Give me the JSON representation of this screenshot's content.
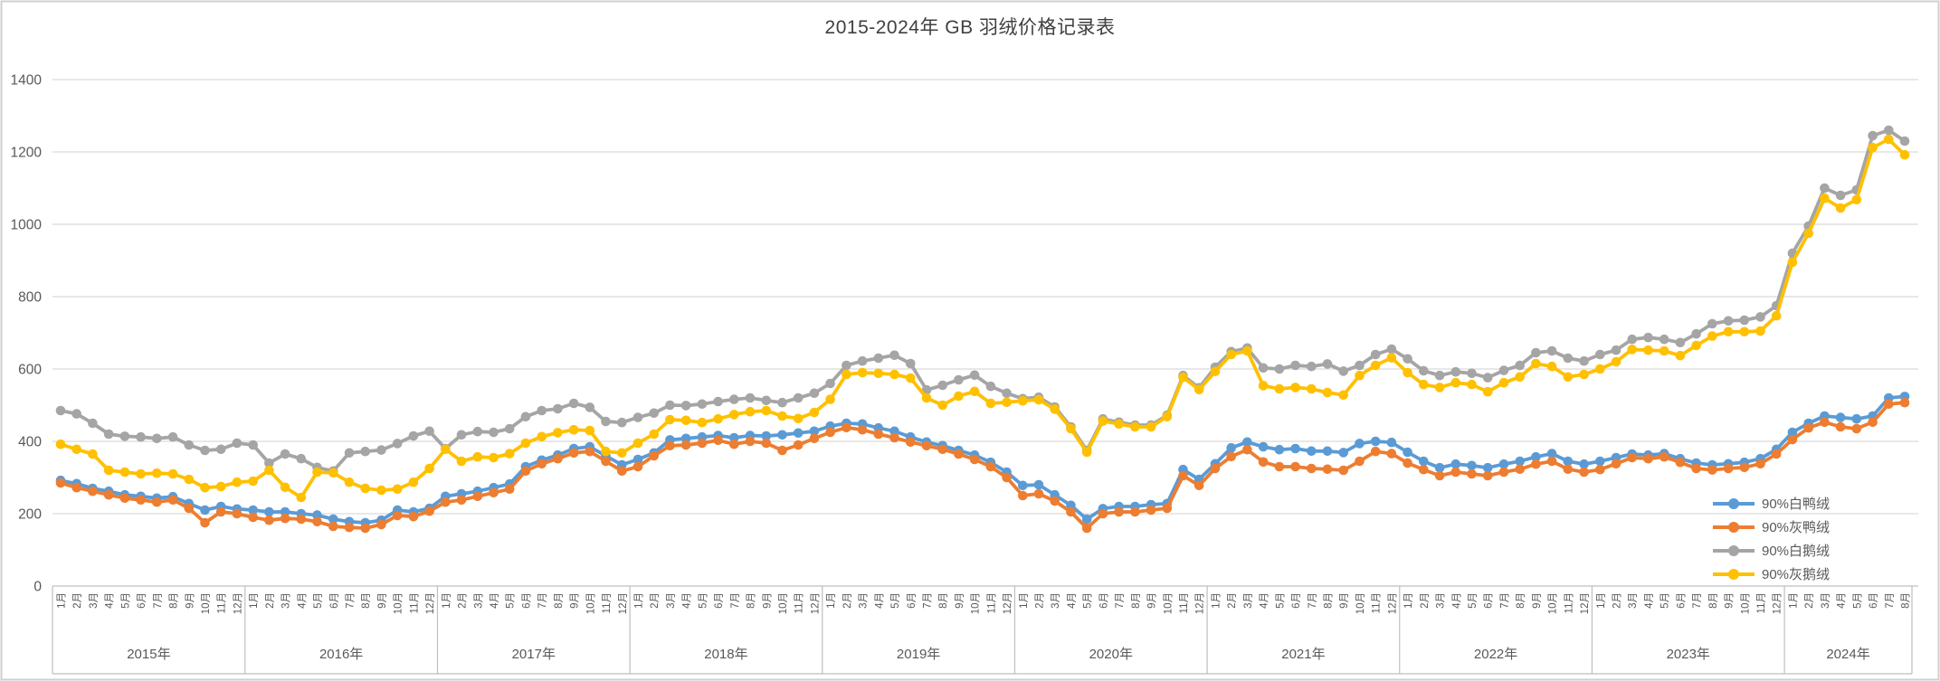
{
  "title": "2015-2024年 GB 羽绒价格记录表",
  "chart_data": {
    "type": "line",
    "title": "2015-2024年 GB 羽绒价格记录表",
    "ylim": [
      0,
      1400
    ],
    "yticks": [
      0,
      200,
      400,
      600,
      800,
      1000,
      1200,
      1400
    ],
    "grid": true,
    "legend_position": "inside-bottom-right",
    "colors": {
      "axis_text": "#595959",
      "gridline": "#d9d9d9",
      "axis_line": "#bfbfbf",
      "frame": "#d0cece"
    },
    "years": [
      {
        "label": "2015年",
        "months": [
          "1月",
          "2月",
          "3月",
          "4月",
          "5月",
          "6月",
          "7月",
          "8月",
          "9月",
          "10月",
          "11月",
          "12月"
        ]
      },
      {
        "label": "2016年",
        "months": [
          "1月",
          "2月",
          "3月",
          "4月",
          "5月",
          "6月",
          "7月",
          "8月",
          "9月",
          "10月",
          "11月",
          "12月"
        ]
      },
      {
        "label": "2017年",
        "months": [
          "1月",
          "2月",
          "3月",
          "4月",
          "5月",
          "6月",
          "7月",
          "8月",
          "9月",
          "10月",
          "11月",
          "12月"
        ]
      },
      {
        "label": "2018年",
        "months": [
          "1月",
          "2月",
          "3月",
          "4月",
          "5月",
          "6月",
          "7月",
          "8月",
          "9月",
          "10月",
          "11月",
          "12月"
        ]
      },
      {
        "label": "2019年",
        "months": [
          "1月",
          "2月",
          "3月",
          "4月",
          "5月",
          "6月",
          "7月",
          "8月",
          "9月",
          "10月",
          "11月",
          "12月"
        ]
      },
      {
        "label": "2020年",
        "months": [
          "1月",
          "2月",
          "3月",
          "4月",
          "5月",
          "6月",
          "7月",
          "8月",
          "9月",
          "10月",
          "11月",
          "12月"
        ]
      },
      {
        "label": "2021年",
        "months": [
          "1月",
          "2月",
          "3月",
          "4月",
          "5月",
          "6月",
          "7月",
          "8月",
          "9月",
          "10月",
          "11月",
          "12月"
        ]
      },
      {
        "label": "2022年",
        "months": [
          "1月",
          "2月",
          "3月",
          "4月",
          "5月",
          "6月",
          "7月",
          "8月",
          "9月",
          "10月",
          "11月",
          "12月"
        ]
      },
      {
        "label": "2023年",
        "months": [
          "1月",
          "2月",
          "3月",
          "4月",
          "5月",
          "6月",
          "7月",
          "8月",
          "9月",
          "10月",
          "11月",
          "12月"
        ]
      },
      {
        "label": "2024年",
        "months": [
          "1月",
          "2月",
          "3月",
          "4月",
          "5月",
          "6月",
          "7月",
          "8月"
        ]
      }
    ],
    "series": [
      {
        "name": "90%白鸭绒",
        "key": "white-duck",
        "color": "#5b9bd5",
        "values": [
          292,
          283,
          270,
          262,
          252,
          248,
          243,
          247,
          228,
          210,
          220,
          213,
          210,
          205,
          205,
          200,
          196,
          185,
          178,
          175,
          182,
          210,
          205,
          215,
          248,
          255,
          262,
          272,
          282,
          330,
          348,
          362,
          380,
          385,
          360,
          335,
          350,
          368,
          404,
          408,
          412,
          416,
          410,
          416,
          415,
          418,
          423,
          428,
          442,
          450,
          448,
          437,
          428,
          412,
          398,
          388,
          375,
          362,
          342,
          315,
          278,
          280,
          252,
          223,
          185,
          214,
          220,
          220,
          225,
          228,
          322,
          295,
          338,
          382,
          398,
          385,
          377,
          380,
          373,
          373,
          369,
          394,
          400,
          397,
          370,
          345,
          327,
          337,
          333,
          327,
          337,
          345,
          357,
          366,
          345,
          337,
          345,
          355,
          365,
          362,
          366,
          352,
          340,
          335,
          338,
          342,
          352,
          378,
          425,
          450,
          470,
          466,
          462,
          470,
          520,
          524
        ]
      },
      {
        "name": "90%灰鸭绒",
        "key": "grey-duck",
        "color": "#ed7d31",
        "values": [
          285,
          272,
          262,
          252,
          243,
          238,
          232,
          238,
          215,
          175,
          205,
          200,
          190,
          182,
          187,
          185,
          178,
          165,
          162,
          160,
          170,
          195,
          192,
          207,
          232,
          238,
          248,
          258,
          268,
          318,
          338,
          352,
          368,
          372,
          345,
          318,
          330,
          360,
          388,
          390,
          395,
          403,
          392,
          400,
          395,
          375,
          390,
          408,
          425,
          438,
          432,
          420,
          410,
          398,
          388,
          378,
          365,
          350,
          330,
          300,
          250,
          255,
          235,
          205,
          160,
          200,
          205,
          205,
          210,
          215,
          305,
          278,
          325,
          358,
          377,
          343,
          330,
          330,
          325,
          323,
          320,
          345,
          372,
          366,
          340,
          322,
          305,
          315,
          310,
          305,
          315,
          323,
          337,
          345,
          323,
          315,
          322,
          338,
          355,
          352,
          357,
          342,
          325,
          321,
          325,
          328,
          338,
          365,
          405,
          437,
          453,
          440,
          435,
          453,
          503,
          507
        ]
      },
      {
        "name": "90%白鹅绒",
        "key": "white-goose",
        "color": "#a5a5a5",
        "values": [
          485,
          476,
          450,
          420,
          414,
          412,
          408,
          412,
          390,
          375,
          378,
          395,
          390,
          340,
          365,
          352,
          328,
          318,
          368,
          372,
          376,
          394,
          415,
          428,
          380,
          418,
          427,
          425,
          435,
          468,
          485,
          490,
          505,
          494,
          455,
          452,
          466,
          478,
          500,
          499,
          503,
          510,
          516,
          520,
          513,
          507,
          520,
          533,
          560,
          610,
          622,
          630,
          638,
          615,
          542,
          555,
          570,
          583,
          552,
          533,
          518,
          522,
          495,
          440,
          375,
          462,
          453,
          445,
          445,
          472,
          582,
          548,
          605,
          648,
          658,
          603,
          600,
          610,
          607,
          614,
          594,
          610,
          640,
          655,
          628,
          595,
          582,
          592,
          588,
          576,
          596,
          610,
          645,
          650,
          630,
          622,
          640,
          652,
          682,
          687,
          682,
          673,
          697,
          725,
          733,
          735,
          744,
          775,
          920,
          995,
          1100,
          1080,
          1095,
          1245,
          1260,
          1230
        ]
      },
      {
        "name": "90%灰鹅绒",
        "key": "grey-goose",
        "color": "#ffc000",
        "values": [
          392,
          378,
          365,
          320,
          315,
          310,
          312,
          310,
          295,
          272,
          275,
          287,
          290,
          320,
          273,
          245,
          315,
          313,
          287,
          270,
          265,
          268,
          287,
          325,
          378,
          345,
          357,
          355,
          366,
          395,
          413,
          424,
          432,
          430,
          372,
          368,
          395,
          420,
          460,
          458,
          452,
          462,
          474,
          482,
          485,
          470,
          463,
          480,
          516,
          585,
          590,
          588,
          585,
          575,
          520,
          500,
          525,
          538,
          505,
          508,
          512,
          515,
          489,
          435,
          370,
          456,
          448,
          440,
          440,
          468,
          577,
          543,
          593,
          640,
          650,
          554,
          545,
          549,
          545,
          535,
          528,
          582,
          610,
          631,
          590,
          557,
          549,
          562,
          557,
          537,
          562,
          578,
          615,
          607,
          578,
          585,
          600,
          620,
          654,
          652,
          650,
          637,
          665,
          691,
          703,
          703,
          705,
          747,
          895,
          975,
          1072,
          1045,
          1068,
          1212,
          1235,
          1192
        ]
      }
    ]
  }
}
